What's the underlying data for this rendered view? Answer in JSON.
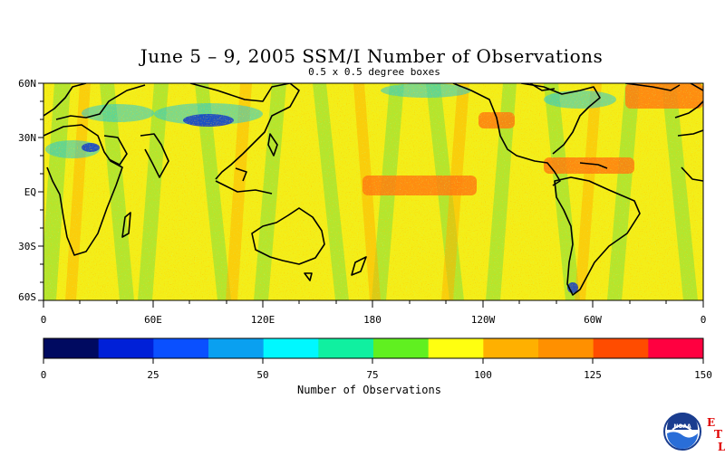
{
  "title": "June 5 – 9, 2005 SSM/I Number of Observations",
  "subtitle": "0.5 x 0.5 degree boxes",
  "map": {
    "lat_labels": [
      "60N",
      "30N",
      "EQ",
      "30S",
      "60S"
    ],
    "lon_labels": [
      "0",
      "60E",
      "120E",
      "180",
      "120W",
      "60W",
      "0"
    ]
  },
  "colorbar": {
    "title": "Number of Observations",
    "tick_labels": [
      "0",
      "25",
      "50",
      "75",
      "100",
      "125",
      "150"
    ],
    "colors": [
      "#000a60",
      "#0020d8",
      "#0a50ff",
      "#0aa0f0",
      "#00f8ff",
      "#10f0a0",
      "#60f020",
      "#ffff10",
      "#ffb000",
      "#ff9000",
      "#ff4c00",
      "#ff0040"
    ]
  },
  "logo": {
    "agency": "NOAA",
    "lab_letters": [
      "E",
      "T",
      "L"
    ],
    "accent": "#e00000"
  }
}
